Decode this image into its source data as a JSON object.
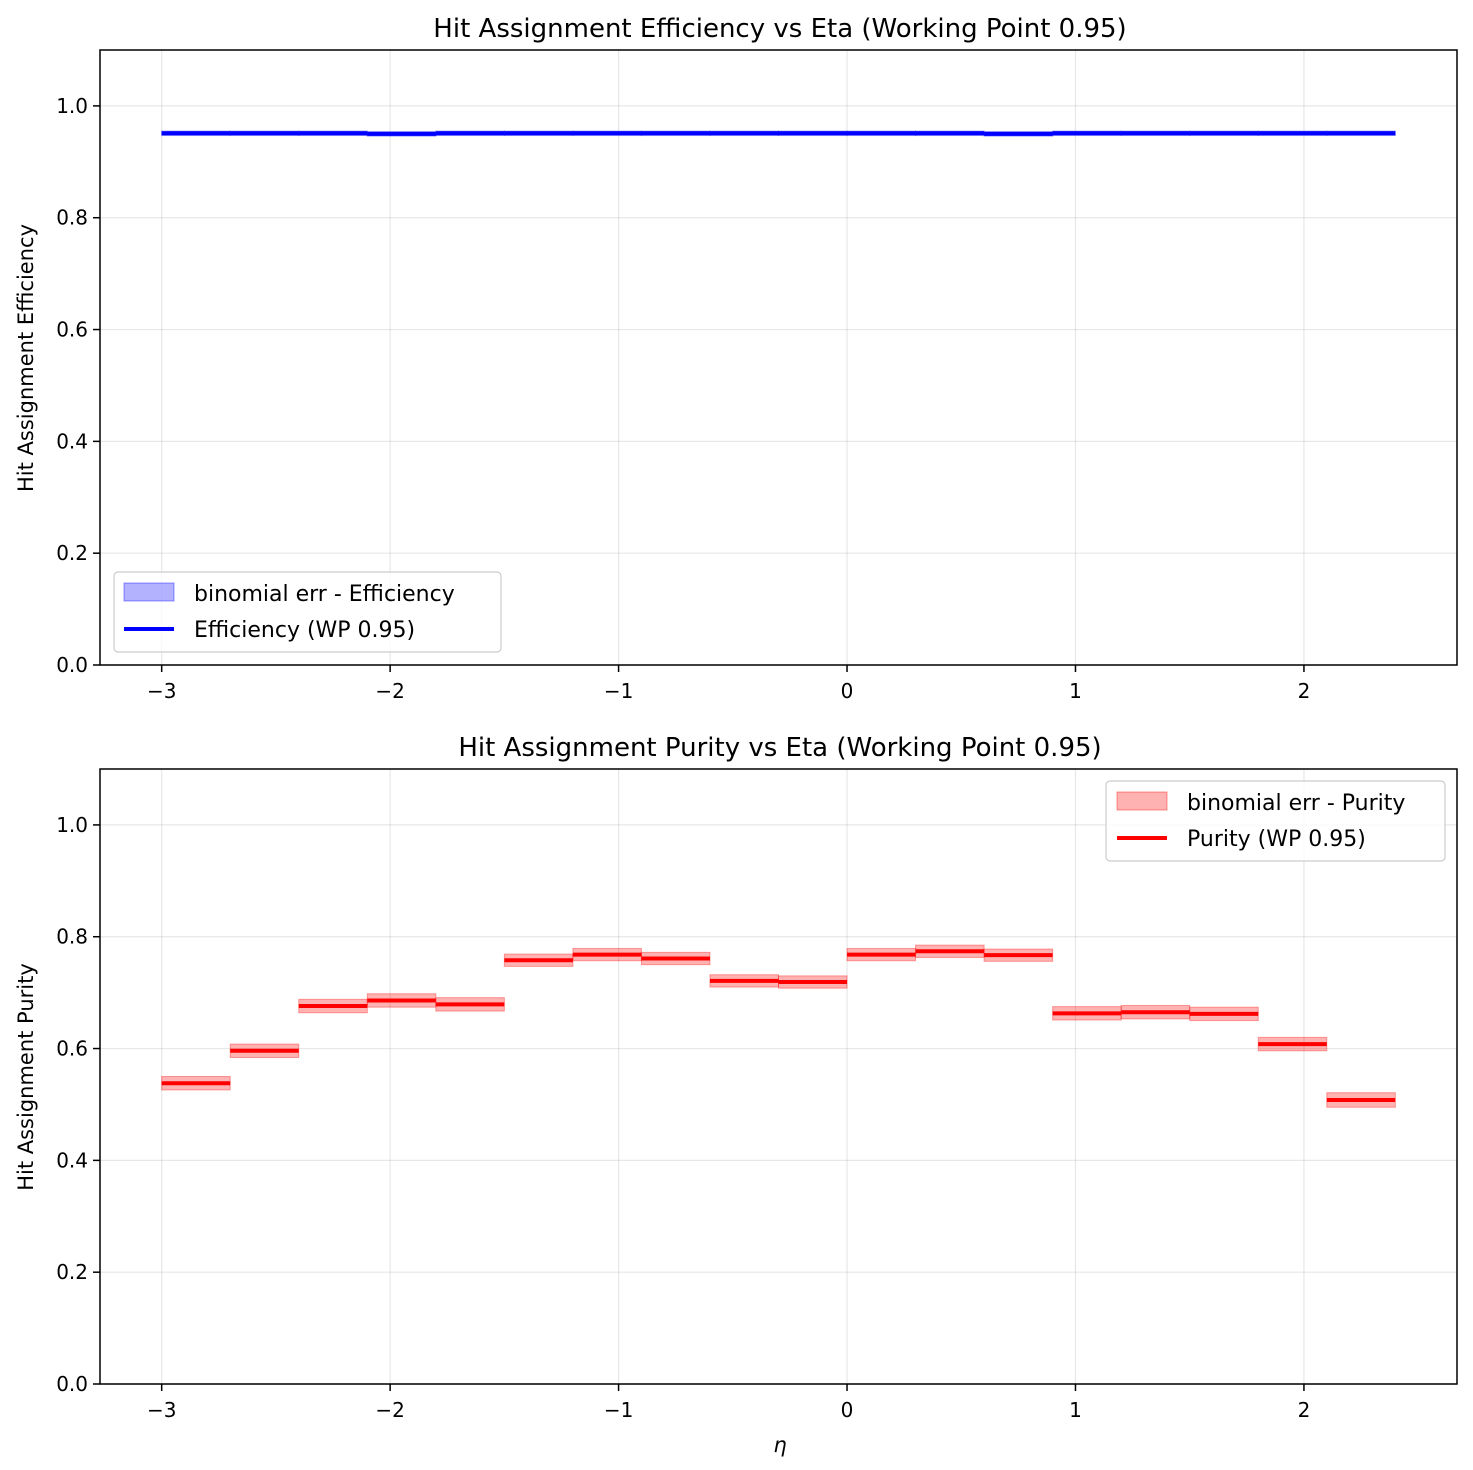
{
  "chart_data": [
    {
      "type": "line",
      "title": "Hit Assignment Efficiency vs Eta (Working Point 0.95)",
      "xlabel": "",
      "ylabel": "Hit Assignment Efficiency",
      "xlim": [
        -3.27,
        2.67
      ],
      "ylim": [
        0.0,
        1.1
      ],
      "xticks": [
        -3,
        -2,
        -1,
        0,
        1,
        2
      ],
      "xtick_labels": [
        "−3",
        "−2",
        "−1",
        "0",
        "1",
        "2"
      ],
      "yticks": [
        0.0,
        0.2,
        0.4,
        0.6,
        0.8,
        1.0
      ],
      "ytick_labels": [
        "0.0",
        "0.2",
        "0.4",
        "0.6",
        "0.8",
        "1.0"
      ],
      "grid": true,
      "legend_position": "bottom-left",
      "bin_edges": [
        -3.0,
        -2.7,
        -2.4,
        -2.1,
        -1.8,
        -1.5,
        -1.2,
        -0.9,
        -0.6,
        -0.3,
        0.0,
        0.3,
        0.6,
        0.9,
        1.2,
        1.5,
        1.8,
        2.1,
        2.4
      ],
      "series": [
        {
          "name": "Efficiency (WP 0.95)",
          "band_name": "binomial err - Efficiency",
          "values": [
            0.951,
            0.951,
            0.951,
            0.95,
            0.951,
            0.951,
            0.951,
            0.951,
            0.951,
            0.951,
            0.951,
            0.951,
            0.95,
            0.951,
            0.951,
            0.951,
            0.951,
            0.951
          ],
          "errors": [
            0.004,
            0.004,
            0.004,
            0.004,
            0.004,
            0.004,
            0.004,
            0.004,
            0.004,
            0.004,
            0.004,
            0.004,
            0.004,
            0.004,
            0.004,
            0.004,
            0.004,
            0.004
          ],
          "color": "#0000ff",
          "band_color": "#0000ff"
        }
      ]
    },
    {
      "type": "line",
      "title": "Hit Assignment Purity vs Eta (Working Point 0.95)",
      "xlabel": "η",
      "ylabel": "Hit Assignment Purity",
      "xlim": [
        -3.27,
        2.67
      ],
      "ylim": [
        0.0,
        1.1
      ],
      "xticks": [
        -3,
        -2,
        -1,
        0,
        1,
        2
      ],
      "xtick_labels": [
        "−3",
        "−2",
        "−1",
        "0",
        "1",
        "2"
      ],
      "yticks": [
        0.0,
        0.2,
        0.4,
        0.6,
        0.8,
        1.0
      ],
      "ytick_labels": [
        "0.0",
        "0.2",
        "0.4",
        "0.6",
        "0.8",
        "1.0"
      ],
      "grid": true,
      "legend_position": "top-right",
      "bin_edges": [
        -3.0,
        -2.7,
        -2.4,
        -2.1,
        -1.8,
        -1.5,
        -1.2,
        -0.9,
        -0.6,
        -0.3,
        0.0,
        0.3,
        0.6,
        0.9,
        1.2,
        1.5,
        1.8,
        2.1,
        2.4
      ],
      "series": [
        {
          "name": "Purity (WP 0.95)",
          "band_name": "binomial err - Purity",
          "values": [
            0.538,
            0.596,
            0.676,
            0.686,
            0.679,
            0.758,
            0.768,
            0.761,
            0.721,
            0.719,
            0.768,
            0.774,
            0.767,
            0.663,
            0.665,
            0.662,
            0.608,
            0.508
          ],
          "errors": [
            0.012,
            0.012,
            0.012,
            0.012,
            0.012,
            0.011,
            0.011,
            0.011,
            0.011,
            0.011,
            0.011,
            0.011,
            0.011,
            0.012,
            0.012,
            0.012,
            0.012,
            0.013
          ],
          "color": "#ff0000",
          "band_color": "#ff0000"
        }
      ]
    }
  ]
}
